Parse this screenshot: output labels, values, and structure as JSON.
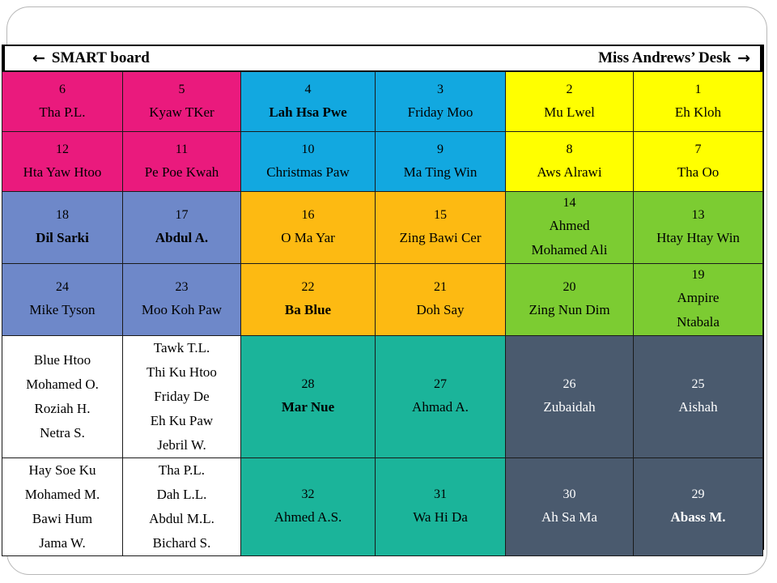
{
  "header": {
    "left_arrow": "←",
    "left_label": "SMART board",
    "right_label": "Miss Andrews’ Desk",
    "right_arrow": "→"
  },
  "colors": {
    "magenta": "#ea1a7d",
    "cyan": "#12a8e0",
    "yellow": "#ffff00",
    "periwinkle": "#6e88c9",
    "orange": "#fdba12",
    "green": "#7ccc32",
    "teal": "#1bb49a",
    "slate": "#4a5a6e",
    "white": "#ffffff"
  },
  "rows": [
    [
      {
        "num": "6",
        "name": "Tha P.L.",
        "bg": "#ea1a7d"
      },
      {
        "num": "5",
        "name": "Kyaw TKer",
        "bg": "#ea1a7d"
      },
      {
        "num": "4",
        "name": "Lah Hsa Pwe",
        "bg": "#12a8e0",
        "bold": true
      },
      {
        "num": "3",
        "name": "Friday Moo",
        "bg": "#12a8e0"
      },
      {
        "num": "2",
        "name": "Mu Lwel",
        "bg": "#ffff00"
      },
      {
        "num": "1",
        "name": "Eh Kloh",
        "bg": "#ffff00"
      }
    ],
    [
      {
        "num": "12",
        "name": "Hta Yaw Htoo",
        "bg": "#ea1a7d"
      },
      {
        "num": "11",
        "name": "Pe Poe Kwah",
        "bg": "#ea1a7d"
      },
      {
        "num": "10",
        "name": "Christmas Paw",
        "bg": "#12a8e0"
      },
      {
        "num": "9",
        "name": "Ma Ting Win",
        "bg": "#12a8e0"
      },
      {
        "num": "8",
        "name": "Aws Alrawi",
        "bg": "#ffff00"
      },
      {
        "num": "7",
        "name": "Tha Oo",
        "bg": "#ffff00"
      }
    ],
    [
      {
        "num": "18",
        "name": "Dil Sarki",
        "bg": "#6e88c9",
        "bold": true
      },
      {
        "num": "17",
        "name": "Abdul A.",
        "bg": "#6e88c9",
        "bold": true
      },
      {
        "num": "16",
        "name": "O Ma Yar",
        "bg": "#fdba12"
      },
      {
        "num": "15",
        "name": "Zing Bawi Cer",
        "bg": "#fdba12"
      },
      {
        "num": "14",
        "name": "Ahmed",
        "name2": "Mohamed Ali",
        "bg": "#7ccc32"
      },
      {
        "num": "13",
        "name": "Htay Htay Win",
        "bg": "#7ccc32"
      }
    ],
    [
      {
        "num": "24",
        "name": "Mike Tyson",
        "bg": "#6e88c9"
      },
      {
        "num": "23",
        "name": "Moo Koh Paw",
        "bg": "#6e88c9"
      },
      {
        "num": "22",
        "name": "Ba Blue",
        "bg": "#fdba12",
        "bold": true
      },
      {
        "num": "21",
        "name": "Doh Say",
        "bg": "#fdba12"
      },
      {
        "num": "20",
        "name": "Zing Nun Dim",
        "bg": "#7ccc32"
      },
      {
        "num": "19",
        "name": "Ampire",
        "name2": "Ntabala",
        "bg": "#7ccc32"
      }
    ]
  ],
  "group_rows": [
    {
      "left_group": [
        "Blue Htoo",
        "Mohamed O.",
        "Roziah H.",
        "Netra S."
      ],
      "middle_group": [
        "Tawk T.L.",
        "Thi Ku Htoo",
        "Friday De",
        "Eh Ku Paw",
        "Jebril W."
      ],
      "seats": [
        {
          "num": "28",
          "name": "Mar Nue",
          "bg": "#1bb49a",
          "bold": true
        },
        {
          "num": "27",
          "name": "Ahmad A.",
          "bg": "#1bb49a"
        },
        {
          "num": "26",
          "name": "Zubaidah",
          "bg": "#4a5a6e",
          "light": true
        },
        {
          "num": "25",
          "name": "Aishah",
          "bg": "#4a5a6e",
          "light": true
        }
      ]
    },
    {
      "left_group": [
        "Hay Soe Ku",
        "Mohamed M.",
        "Bawi Hum",
        "Jama W."
      ],
      "middle_group": [
        "Tha P.L.",
        "Dah L.L.",
        "Abdul M.L.",
        "Bichard S."
      ],
      "seats": [
        {
          "num": "32",
          "name": "Ahmed A.S.",
          "bg": "#1bb49a"
        },
        {
          "num": "31",
          "name": "Wa Hi Da",
          "bg": "#1bb49a"
        },
        {
          "num": "30",
          "name": "Ah Sa Ma",
          "bg": "#4a5a6e",
          "light": true
        },
        {
          "num": "29",
          "name": "Abass M.",
          "bg": "#4a5a6e",
          "light": true,
          "bold": true
        }
      ]
    }
  ]
}
